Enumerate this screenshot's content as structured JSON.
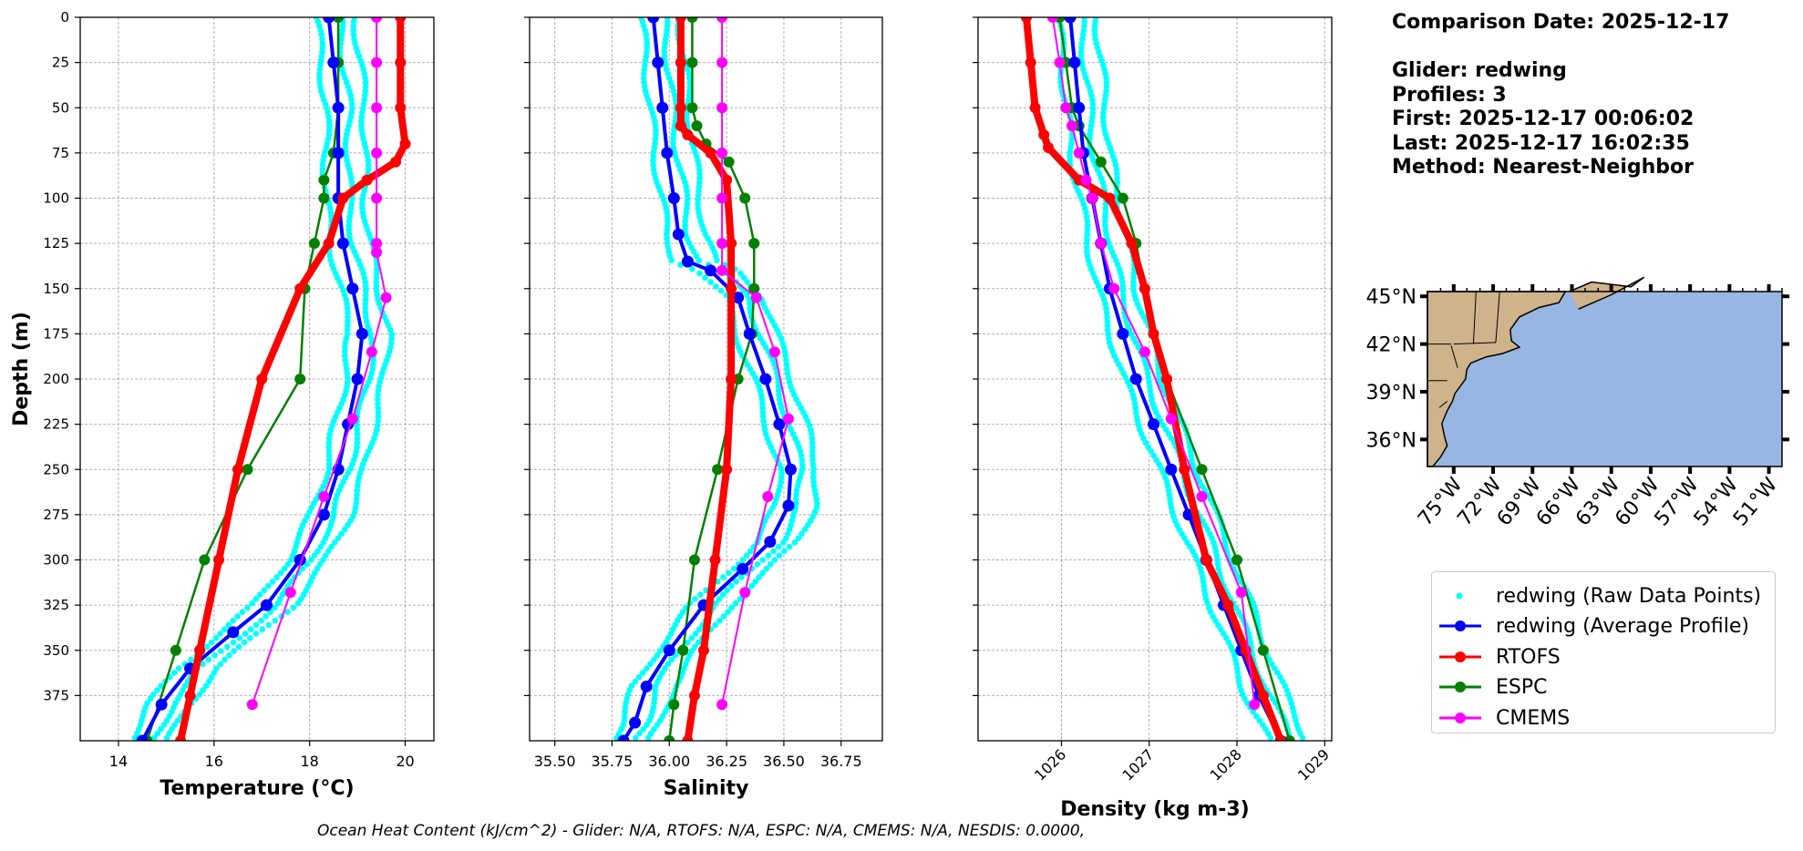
{
  "info": {
    "comparison_date": "Comparison Date: 2025-12-17",
    "glider": "Glider: redwing",
    "profiles": "Profiles: 3",
    "first": "First: 2025-12-17 00:06:02",
    "last": "Last: 2025-12-17 16:02:35",
    "method": "Method: Nearest-Neighbor"
  },
  "footer": "Ocean Heat Content (kJ/cm^2) - Glider: N/A,  RTOFS: N/A,  ESPC: N/A,  CMEMS: N/A,  NESDIS: 0.0000,",
  "legend": [
    {
      "label": "redwing (Raw Data Points)",
      "color": "#00ffff",
      "kind": "points"
    },
    {
      "label": "redwing (Average Profile)",
      "color": "#0000ff",
      "kind": "line-marker"
    },
    {
      "label": "RTOFS",
      "color": "#ff0000",
      "kind": "line-marker"
    },
    {
      "label": "ESPC",
      "color": "#008000",
      "kind": "line-marker"
    },
    {
      "label": "CMEMS",
      "color": "#ff00ff",
      "kind": "line-marker"
    }
  ],
  "map": {
    "lat_ticks": [
      "45°N",
      "42°N",
      "39°N",
      "36°N"
    ],
    "lon_ticks": [
      "75°W",
      "72°W",
      "69°W",
      "66°W",
      "63°W",
      "60°W",
      "57°W",
      "54°W",
      "51°W"
    ],
    "ocean_color": "#97b6e1",
    "land_color": "#cfb38a"
  },
  "chart_data": [
    {
      "type": "line",
      "xlabel": "Temperature (°C)",
      "ylabel": "Depth (m)",
      "xlim": [
        13.2,
        20.6
      ],
      "ylim": [
        400,
        0
      ],
      "xticks": [
        14,
        16,
        18,
        20
      ],
      "yticks": [
        0,
        25,
        50,
        75,
        100,
        125,
        150,
        175,
        200,
        225,
        250,
        275,
        300,
        325,
        350,
        375
      ],
      "grid": true,
      "series": [
        {
          "name": "redwing (Average Profile)",
          "color": "#0000ff",
          "x": [
            18.4,
            18.5,
            18.6,
            18.6,
            18.6,
            18.7,
            18.9,
            19.1,
            19.0,
            18.8,
            18.6,
            18.3,
            17.8,
            17.1,
            16.4,
            15.5,
            14.9,
            14.5
          ],
          "y": [
            0,
            25,
            50,
            75,
            100,
            125,
            150,
            175,
            200,
            225,
            250,
            275,
            300,
            325,
            340,
            360,
            380,
            400
          ]
        },
        {
          "name": "RTOFS",
          "color": "#ff0000",
          "x": [
            19.9,
            19.9,
            19.9,
            20.0,
            19.8,
            19.2,
            18.7,
            18.4,
            17.8,
            17.0,
            16.5,
            16.1,
            15.7,
            15.5,
            15.3
          ],
          "y": [
            0,
            25,
            50,
            70,
            80,
            90,
            100,
            125,
            150,
            200,
            250,
            300,
            350,
            375,
            400
          ]
        },
        {
          "name": "ESPC",
          "color": "#008000",
          "x": [
            18.6,
            18.6,
            18.6,
            18.5,
            18.3,
            18.3,
            18.1,
            17.9,
            17.8,
            16.7,
            15.8,
            15.2,
            14.6
          ],
          "y": [
            0,
            25,
            50,
            75,
            90,
            100,
            125,
            150,
            200,
            250,
            300,
            350,
            400
          ]
        },
        {
          "name": "CMEMS",
          "color": "#ff00ff",
          "x": [
            19.4,
            19.4,
            19.4,
            19.4,
            19.4,
            19.4,
            19.4,
            19.6,
            19.3,
            18.9,
            18.3,
            17.6,
            16.8
          ],
          "y": [
            0,
            25,
            50,
            75,
            100,
            125,
            130,
            155,
            185,
            222,
            265,
            318,
            380
          ]
        }
      ],
      "raw_points_series": "redwing (Raw Data Points)"
    },
    {
      "type": "line",
      "xlabel": "Salinity",
      "xlim": [
        35.39,
        36.93
      ],
      "ylim": [
        400,
        0
      ],
      "xticks": [
        35.5,
        35.75,
        36.0,
        36.25,
        36.5,
        36.75
      ],
      "grid": true,
      "series": [
        {
          "name": "redwing (Average Profile)",
          "color": "#0000ff",
          "x": [
            35.93,
            35.95,
            35.97,
            35.99,
            36.02,
            36.04,
            36.08,
            36.18,
            36.3,
            36.35,
            36.42,
            36.48,
            36.53,
            36.52,
            36.44,
            36.32,
            36.15,
            36.0,
            35.9,
            35.85,
            35.8
          ],
          "y": [
            0,
            25,
            50,
            75,
            100,
            120,
            135,
            140,
            155,
            175,
            200,
            225,
            250,
            270,
            290,
            305,
            325,
            350,
            370,
            390,
            400
          ]
        },
        {
          "name": "RTOFS",
          "color": "#ff0000",
          "x": [
            36.05,
            36.05,
            36.05,
            36.05,
            36.08,
            36.18,
            36.25,
            36.27,
            36.27,
            36.27,
            36.25,
            36.2,
            36.15,
            36.11,
            36.08
          ],
          "y": [
            0,
            25,
            50,
            60,
            65,
            75,
            90,
            125,
            150,
            200,
            250,
            300,
            350,
            375,
            400
          ]
        },
        {
          "name": "ESPC",
          "color": "#008000",
          "x": [
            36.1,
            36.1,
            36.1,
            36.12,
            36.16,
            36.26,
            36.33,
            36.37,
            36.37,
            36.36,
            36.3,
            36.21,
            36.11,
            36.06,
            36.02,
            36.0
          ],
          "y": [
            0,
            25,
            50,
            60,
            70,
            80,
            100,
            125,
            150,
            175,
            200,
            250,
            300,
            350,
            380,
            400
          ]
        },
        {
          "name": "CMEMS",
          "color": "#ff00ff",
          "x": [
            36.23,
            36.23,
            36.23,
            36.23,
            36.23,
            36.23,
            36.23,
            36.38,
            36.46,
            36.52,
            36.43,
            36.33,
            36.23
          ],
          "y": [
            0,
            25,
            50,
            75,
            100,
            125,
            140,
            155,
            185,
            222,
            265,
            318,
            380
          ]
        }
      ],
      "raw_points_series": "redwing (Raw Data Points)"
    },
    {
      "type": "line",
      "xlabel": "Density (kg m-3)",
      "xlim": [
        1025.05,
        1029.08
      ],
      "ylim": [
        400,
        0
      ],
      "xticks": [
        1026,
        1027,
        1028,
        1029
      ],
      "grid": true,
      "series": [
        {
          "name": "redwing (Average Profile)",
          "color": "#0000ff",
          "x": [
            1026.1,
            1026.15,
            1026.2,
            1026.25,
            1026.35,
            1026.45,
            1026.55,
            1026.7,
            1026.85,
            1027.05,
            1027.25,
            1027.45,
            1027.65,
            1027.85,
            1028.05,
            1028.25,
            1028.5
          ],
          "y": [
            0,
            25,
            50,
            75,
            100,
            125,
            150,
            175,
            200,
            225,
            250,
            275,
            300,
            325,
            350,
            375,
            400
          ]
        },
        {
          "name": "RTOFS",
          "color": "#ff0000",
          "x": [
            1025.6,
            1025.65,
            1025.7,
            1025.8,
            1025.85,
            1026.2,
            1026.55,
            1026.8,
            1026.95,
            1027.05,
            1027.2,
            1027.4,
            1027.65,
            1027.9,
            1028.1,
            1028.3,
            1028.5
          ],
          "y": [
            0,
            25,
            50,
            65,
            72,
            90,
            100,
            125,
            150,
            175,
            200,
            250,
            300,
            325,
            350,
            375,
            400
          ]
        },
        {
          "name": "ESPC",
          "color": "#008000",
          "x": [
            1025.98,
            1026.05,
            1026.12,
            1026.2,
            1026.45,
            1026.7,
            1026.85,
            1026.95,
            1027.2,
            1027.6,
            1028.0,
            1028.3,
            1028.6
          ],
          "y": [
            0,
            25,
            50,
            60,
            80,
            100,
            125,
            150,
            200,
            250,
            300,
            350,
            400
          ]
        },
        {
          "name": "CMEMS",
          "color": "#ff00ff",
          "x": [
            1025.9,
            1025.98,
            1026.05,
            1026.12,
            1026.2,
            1026.28,
            1026.35,
            1026.45,
            1026.6,
            1026.95,
            1027.25,
            1027.6,
            1028.05,
            1028.2
          ],
          "y": [
            0,
            25,
            50,
            60,
            75,
            90,
            100,
            125,
            150,
            185,
            222,
            265,
            318,
            380
          ]
        }
      ],
      "raw_points_series": "redwing (Raw Data Points)"
    }
  ]
}
